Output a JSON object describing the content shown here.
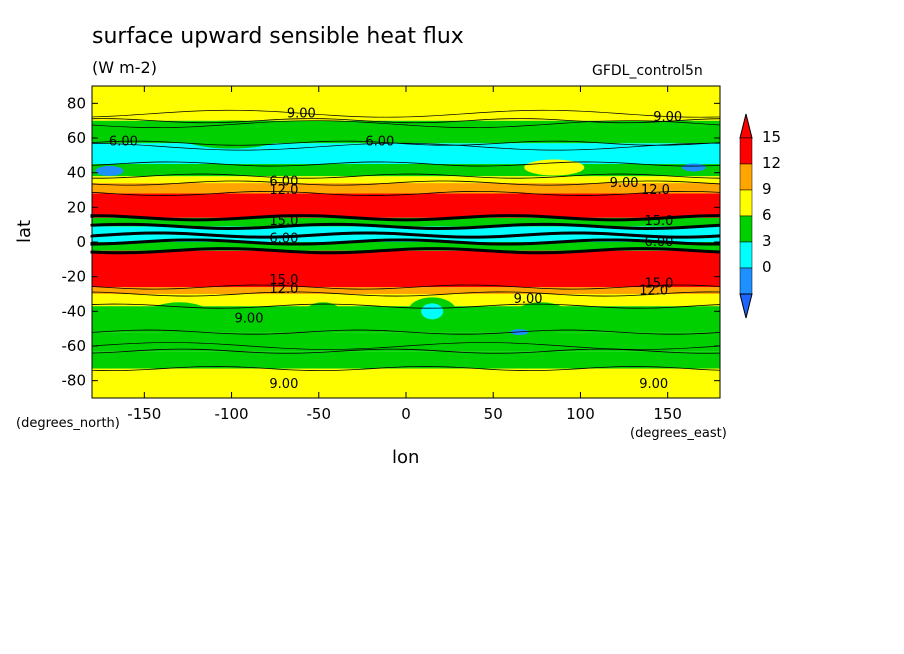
{
  "chart_data": {
    "type": "heatmap",
    "title": "surface upward sensible heat flux",
    "units": "(W m-2)",
    "dataset": "GFDL_control5n",
    "xlabel": "lon",
    "ylabel": "lat",
    "x_units": "(degrees_east)",
    "y_units": "(degrees_north)",
    "xlim": [
      -180,
      180
    ],
    "ylim": [
      -90,
      90
    ],
    "x_ticks": [
      -150,
      -100,
      -50,
      0,
      50,
      100,
      150
    ],
    "x_tick_labels": [
      "-150",
      "-100",
      "-50",
      "0",
      "50",
      "100",
      "150"
    ],
    "y_ticks": [
      -80,
      -60,
      -40,
      -20,
      0,
      20,
      40,
      60,
      80
    ],
    "y_tick_labels": [
      "-80",
      "-60",
      "-40",
      "-20",
      "0",
      "20",
      "40",
      "60",
      "80"
    ],
    "colorbar": {
      "levels": [
        0,
        3,
        6,
        9,
        12,
        15
      ],
      "labels": [
        "0",
        "3",
        "6",
        "9",
        "12",
        "15"
      ],
      "colors": [
        "#1e90ff",
        "#00ffff",
        "#00d000",
        "#ffff00",
        "#ffa500",
        "#ff0000"
      ],
      "under_color": "#1e64ff",
      "over_color": "#ff0000"
    },
    "zonal_bands": [
      {
        "lat": [
          -90,
          -73
        ],
        "value": 9.5
      },
      {
        "lat": [
          -73,
          -63
        ],
        "value": 7.5
      },
      {
        "lat": [
          -63,
          -52
        ],
        "value": 6.5
      },
      {
        "lat": [
          -52,
          -37
        ],
        "value": 8.0
      },
      {
        "lat": [
          -37,
          -30
        ],
        "value": 10.5
      },
      {
        "lat": [
          -30,
          -26
        ],
        "value": 13.0
      },
      {
        "lat": [
          -26,
          -5
        ],
        "value": 16.0
      },
      {
        "lat": [
          -5,
          0
        ],
        "value": 7.5
      },
      {
        "lat": [
          0,
          4
        ],
        "value": 5.0
      },
      {
        "lat": [
          4,
          9
        ],
        "value": 4.5
      },
      {
        "lat": [
          9,
          14
        ],
        "value": 6.0
      },
      {
        "lat": [
          14,
          28
        ],
        "value": 16.0
      },
      {
        "lat": [
          28,
          34
        ],
        "value": 12.0
      },
      {
        "lat": [
          34,
          38
        ],
        "value": 9.5
      },
      {
        "lat": [
          38,
          45
        ],
        "value": 6.5
      },
      {
        "lat": [
          45,
          57
        ],
        "value": 4.5
      },
      {
        "lat": [
          57,
          70
        ],
        "value": 7.0
      },
      {
        "lat": [
          70,
          90
        ],
        "value": 9.5
      }
    ],
    "contour_labels": [
      {
        "text": "9.00",
        "lon": -60,
        "lat": 74
      },
      {
        "text": "9.00",
        "lon": 150,
        "lat": 72
      },
      {
        "text": "6.00",
        "lon": -162,
        "lat": 58
      },
      {
        "text": "6.00",
        "lon": -15,
        "lat": 58
      },
      {
        "text": "6.00",
        "lon": -70,
        "lat": 35
      },
      {
        "text": "9.00",
        "lon": 125,
        "lat": 34
      },
      {
        "text": "12.0",
        "lon": -70,
        "lat": 30
      },
      {
        "text": "12.0",
        "lon": 143,
        "lat": 30
      },
      {
        "text": "15.0",
        "lon": -70,
        "lat": 12
      },
      {
        "text": "15.0",
        "lon": 145,
        "lat": 12
      },
      {
        "text": "6.00",
        "lon": -70,
        "lat": 2
      },
      {
        "text": "6.00",
        "lon": 145,
        "lat": 0
      },
      {
        "text": "15.0",
        "lon": -70,
        "lat": -22
      },
      {
        "text": "15.0",
        "lon": 145,
        "lat": -24
      },
      {
        "text": "12.0",
        "lon": -70,
        "lat": -27
      },
      {
        "text": "12.0",
        "lon": 142,
        "lat": -28
      },
      {
        "text": "9.00",
        "lon": 70,
        "lat": -33
      },
      {
        "text": "9.00",
        "lon": -90,
        "lat": -44
      },
      {
        "text": "9.00",
        "lon": -70,
        "lat": -82
      },
      {
        "text": "9.00",
        "lon": 142,
        "lat": -82
      }
    ]
  }
}
